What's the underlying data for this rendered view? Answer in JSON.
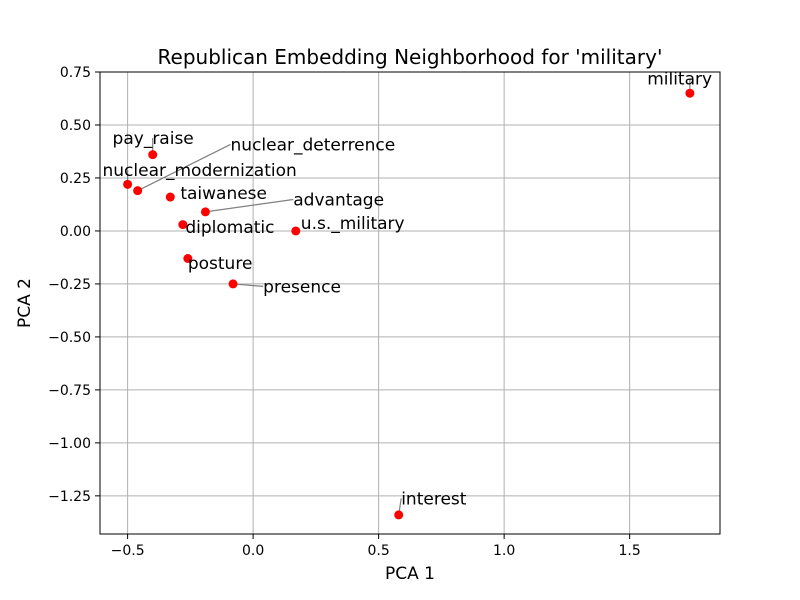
{
  "chart_data": {
    "type": "scatter",
    "title": "Republican Embedding Neighborhood for 'military'",
    "xlabel": "PCA 1",
    "ylabel": "PCA 2",
    "xlim": [
      -0.61,
      1.86
    ],
    "ylim": [
      -1.43,
      0.75
    ],
    "xticks": [
      -0.5,
      0.0,
      0.5,
      1.0,
      1.5
    ],
    "yticks": [
      0.75,
      0.5,
      0.25,
      0.0,
      -0.25,
      -0.5,
      -0.75,
      -1.0,
      -1.25
    ],
    "xtick_labels": [
      "−0.5",
      "0.0",
      "0.5",
      "1.0",
      "1.5"
    ],
    "ytick_labels": [
      "0.75",
      "0.50",
      "0.25",
      "0.00",
      "−0.25",
      "−0.50",
      "−0.75",
      "−1.00",
      "−1.25"
    ],
    "grid": true,
    "marker_color": "#ff0000",
    "leader_color": "#808080",
    "points": [
      {
        "label": "military",
        "x": 1.74,
        "y": 0.65,
        "lx": 1.57,
        "ly": 0.69
      },
      {
        "label": "pay_raise",
        "x": -0.4,
        "y": 0.36,
        "lx": -0.56,
        "ly": 0.41
      },
      {
        "label": "nuclear_deterrence",
        "x": -0.46,
        "y": 0.19,
        "lx": -0.09,
        "ly": 0.38
      },
      {
        "label": "nuclear_modernization",
        "x": -0.5,
        "y": 0.22,
        "lx": -0.6,
        "ly": 0.26
      },
      {
        "label": "taiwanese",
        "x": -0.33,
        "y": 0.16,
        "lx": -0.29,
        "ly": 0.15
      },
      {
        "label": "advantage",
        "x": -0.19,
        "y": 0.09,
        "lx": 0.16,
        "ly": 0.12
      },
      {
        "label": "u.s._military",
        "x": 0.17,
        "y": 0.0,
        "lx": 0.19,
        "ly": 0.01
      },
      {
        "label": "diplomatic",
        "x": -0.28,
        "y": 0.03,
        "lx": -0.27,
        "ly": -0.01
      },
      {
        "label": "posture",
        "x": -0.26,
        "y": -0.13,
        "lx": -0.26,
        "ly": -0.18
      },
      {
        "label": "presence",
        "x": -0.08,
        "y": -0.25,
        "lx": 0.04,
        "ly": -0.29
      },
      {
        "label": "interest",
        "x": 0.58,
        "y": -1.34,
        "lx": 0.59,
        "ly": -1.29
      }
    ]
  }
}
